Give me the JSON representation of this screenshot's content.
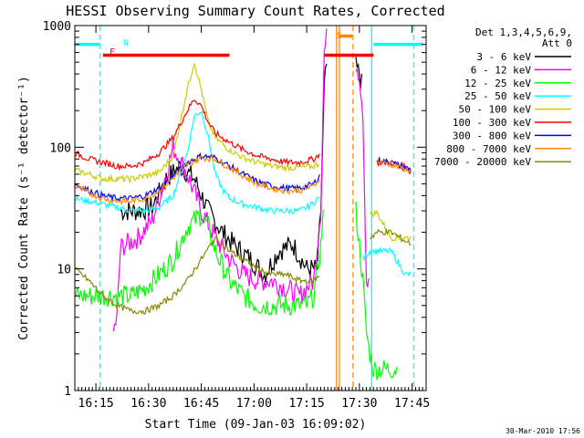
{
  "chart_data": {
    "type": "line",
    "title": "HESSI Observing Summary Count Rates, Corrected",
    "xlabel": "Start Time (09-Jan-03 16:09:02)",
    "ylabel": "Corrected Count Rate (s⁻¹ detector⁻¹)",
    "footer": "30-Mar-2010 17:56",
    "x_units": "minutes after 16:09:02",
    "xlim": [
      0,
      100
    ],
    "ylim": [
      1,
      1000
    ],
    "yscale": "log",
    "x_ticks": [
      {
        "label": "16:15",
        "value": 6
      },
      {
        "label": "16:30",
        "value": 21
      },
      {
        "label": "16:45",
        "value": 36
      },
      {
        "label": "17:00",
        "value": 51
      },
      {
        "label": "17:15",
        "value": 66
      },
      {
        "label": "17:30",
        "value": 81
      },
      {
        "label": "17:45",
        "value": 96
      }
    ],
    "y_ticks": [
      {
        "label": "1",
        "value": 1
      },
      {
        "label": "10",
        "value": 10
      },
      {
        "label": "100",
        "value": 100
      },
      {
        "label": "1000",
        "value": 1000
      }
    ],
    "legend": {
      "header": [
        "Det 1,3,4,5,6,9,",
        "Att 0"
      ],
      "placement": "right"
    },
    "series": [
      {
        "name": "3 - 6 keV",
        "color": "#000000",
        "x": [
          0,
          12,
          13,
          18,
          22,
          26,
          30,
          34,
          38,
          42,
          46,
          50,
          54,
          58,
          62,
          66,
          69,
          70,
          71,
          72,
          73,
          74,
          75,
          76,
          77,
          78,
          79,
          80,
          81,
          82,
          83,
          84,
          85
        ],
        "y": [
          null,
          null,
          30,
          30,
          32,
          55,
          70,
          55,
          30,
          20,
          15,
          12,
          9,
          14,
          16,
          10,
          10,
          30,
          300,
          600,
          null,
          null,
          null,
          null,
          null,
          null,
          null,
          450,
          400,
          300,
          null,
          null,
          null
        ]
      },
      {
        "name": "6 - 12 keV",
        "color": "#ff00ff",
        "x": [
          0,
          10,
          11,
          12,
          13,
          18,
          22,
          26,
          28,
          32,
          36,
          40,
          44,
          48,
          52,
          56,
          60,
          64,
          66,
          68,
          70,
          71,
          72,
          73,
          79,
          80,
          81,
          82,
          83,
          84,
          85
        ],
        "y": [
          null,
          null,
          3,
          4,
          15,
          18,
          25,
          60,
          100,
          60,
          30,
          18,
          12,
          9,
          8,
          8,
          7,
          6,
          7,
          8,
          30,
          600,
          900,
          null,
          null,
          500,
          400,
          200,
          8,
          7,
          null
        ]
      },
      {
        "name": "12 - 25 keV",
        "color": "#00ff00",
        "x": [
          0,
          4,
          8,
          12,
          16,
          20,
          24,
          28,
          32,
          34,
          36,
          38,
          40,
          44,
          48,
          52,
          56,
          60,
          64,
          66,
          68,
          70,
          71,
          72,
          73,
          79,
          80,
          82,
          83,
          84,
          85,
          86,
          88,
          90,
          92
        ],
        "y": [
          6,
          6,
          6,
          6,
          6,
          7,
          9,
          12,
          22,
          25,
          28,
          22,
          14,
          8,
          6,
          5,
          5,
          5,
          5,
          5,
          6,
          15,
          40,
          null,
          null,
          null,
          30,
          8,
          3,
          2,
          1.5,
          1.5,
          1.5,
          1.5,
          1.5
        ]
      },
      {
        "name": "25 - 50 keV",
        "color": "#00ffff",
        "x": [
          0,
          4,
          8,
          12,
          16,
          20,
          24,
          28,
          32,
          34,
          36,
          38,
          40,
          42,
          44,
          48,
          52,
          56,
          60,
          64,
          66,
          68,
          70,
          72,
          79,
          80,
          82,
          84,
          86,
          90,
          94,
          96
        ],
        "y": [
          38,
          36,
          34,
          32,
          30,
          30,
          32,
          40,
          90,
          180,
          200,
          120,
          60,
          45,
          38,
          34,
          32,
          30,
          30,
          30,
          32,
          35,
          40,
          null,
          null,
          null,
          12,
          14,
          14,
          14,
          9,
          9
        ]
      },
      {
        "name": "50 - 100 keV",
        "color": "#cccc00",
        "x": [
          0,
          4,
          8,
          12,
          16,
          20,
          24,
          28,
          32,
          34,
          36,
          38,
          40,
          44,
          48,
          52,
          56,
          60,
          64,
          68,
          70,
          72,
          79,
          82,
          84,
          86,
          90,
          94,
          96
        ],
        "y": [
          65,
          60,
          55,
          55,
          55,
          58,
          62,
          85,
          300,
          500,
          300,
          160,
          120,
          95,
          82,
          75,
          70,
          68,
          68,
          70,
          75,
          null,
          null,
          null,
          28,
          29,
          18,
          18,
          18
        ]
      },
      {
        "name": "100 - 300 keV",
        "color": "#ff0000",
        "x": [
          0,
          4,
          8,
          12,
          16,
          20,
          24,
          28,
          32,
          34,
          36,
          38,
          40,
          44,
          48,
          52,
          56,
          60,
          64,
          68,
          70,
          72,
          79,
          82,
          86,
          90,
          94,
          96
        ],
        "y": [
          90,
          80,
          75,
          70,
          70,
          75,
          90,
          120,
          200,
          250,
          220,
          160,
          130,
          110,
          95,
          85,
          80,
          75,
          75,
          80,
          90,
          null,
          null,
          null,
          75,
          75,
          70,
          60
        ]
      },
      {
        "name": "300 - 800 keV",
        "color": "#0000ff",
        "x": [
          0,
          4,
          8,
          12,
          16,
          20,
          24,
          28,
          32,
          36,
          40,
          44,
          48,
          52,
          56,
          60,
          64,
          68,
          70,
          72,
          79,
          82,
          86,
          90,
          94,
          96
        ],
        "y": [
          50,
          44,
          40,
          38,
          38,
          40,
          46,
          58,
          75,
          85,
          82,
          70,
          60,
          52,
          48,
          46,
          46,
          50,
          60,
          null,
          null,
          null,
          78,
          75,
          68,
          65
        ]
      },
      {
        "name": "800 - 7000 keV",
        "color": "#ff8800",
        "x": [
          0,
          4,
          8,
          12,
          16,
          20,
          24,
          28,
          32,
          36,
          40,
          44,
          48,
          52,
          56,
          60,
          64,
          68,
          70,
          72,
          79,
          82,
          86,
          90,
          94,
          96
        ],
        "y": [
          48,
          42,
          38,
          36,
          36,
          38,
          44,
          56,
          72,
          82,
          80,
          68,
          58,
          50,
          46,
          44,
          44,
          48,
          58,
          null,
          null,
          null,
          76,
          72,
          66,
          63
        ]
      },
      {
        "name": "7000 - 20000 keV",
        "color": "#888800",
        "x": [
          0,
          4,
          8,
          12,
          16,
          20,
          24,
          28,
          32,
          36,
          40,
          44,
          48,
          52,
          56,
          60,
          64,
          68,
          70,
          72,
          79,
          82,
          84,
          86,
          90,
          94,
          96
        ],
        "y": [
          10,
          8,
          6,
          5,
          4.5,
          4.5,
          5,
          6,
          8,
          12,
          18,
          14,
          12,
          10,
          9,
          9,
          8,
          8,
          9,
          null,
          null,
          null,
          18,
          20,
          20,
          17,
          16
        ]
      }
    ],
    "annotations": [
      {
        "label": "N",
        "x": 8,
        "color": "#00ffff"
      },
      {
        "label": "F",
        "x": 8,
        "color": "#ff0000"
      },
      {
        "label": "S",
        "x": 75,
        "color": "#ff8800"
      }
    ],
    "state_bars": [
      {
        "kind": "night",
        "color": "#00ffff",
        "x": [
          0,
          7
        ],
        "y": 700
      },
      {
        "kind": "night",
        "color": "#00ffff",
        "x": [
          85,
          99
        ],
        "y": 700
      },
      {
        "kind": "flare",
        "color": "#ff0000",
        "x": [
          8,
          44
        ],
        "y": 570
      },
      {
        "kind": "flare",
        "color": "#ff0000",
        "x": [
          71,
          85
        ],
        "y": 570
      },
      {
        "kind": "saa",
        "color": "#ff8800",
        "x": [
          75,
          79
        ],
        "y": 820
      }
    ],
    "vertical_markers": [
      {
        "x": 7.2,
        "color": "#00ffff",
        "style": "dashed"
      },
      {
        "x": 84.5,
        "color": "#00ffff",
        "style": "solid"
      },
      {
        "x": 96.5,
        "color": "#00ffff",
        "style": "dashed"
      },
      {
        "x": 74.5,
        "color": "#ff8800",
        "style": "solid"
      },
      {
        "x": 75.3,
        "color": "#ff8800",
        "style": "solid"
      },
      {
        "x": 79.2,
        "color": "#ff8800",
        "style": "dashed"
      }
    ]
  }
}
